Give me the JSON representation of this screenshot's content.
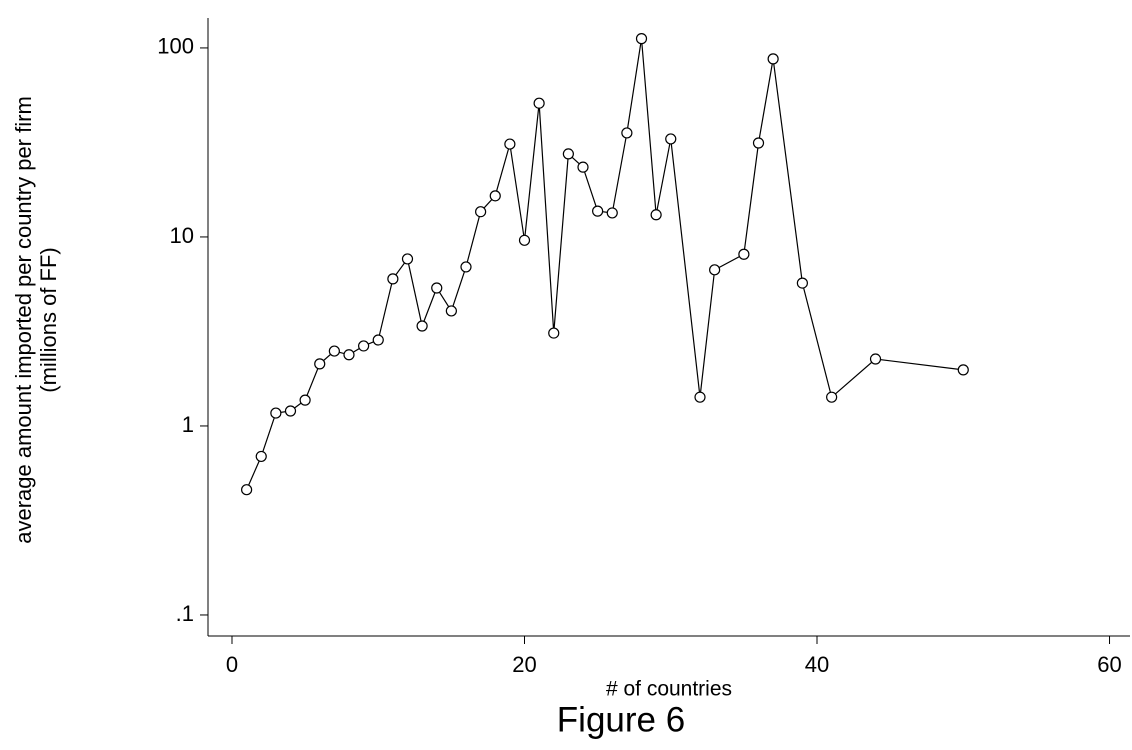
{
  "chart_data": {
    "type": "line",
    "ylabel": [
      "average amount imported per country per firm",
      "(millions of FF)"
    ],
    "xlabel": "# of countries",
    "caption": "Figure 6",
    "x": [
      1,
      2,
      3,
      4,
      5,
      6,
      7,
      8,
      9,
      10,
      11,
      12,
      13,
      14,
      15,
      16,
      17,
      18,
      19,
      20,
      21,
      22,
      23,
      24,
      25,
      26,
      27,
      28,
      29,
      30,
      32,
      33,
      35,
      36,
      37,
      39,
      41,
      44,
      50
    ],
    "series": [
      {
        "color": "#000000",
        "values": [
          0.46,
          0.69,
          1.17,
          1.2,
          1.37,
          2.13,
          2.49,
          2.38,
          2.65,
          2.85,
          6.0,
          7.65,
          3.38,
          5.37,
          4.06,
          6.94,
          13.6,
          16.5,
          31,
          9.6,
          51,
          3.1,
          27.5,
          23.4,
          13.7,
          13.4,
          35.5,
          112,
          13.1,
          33,
          1.42,
          6.7,
          8.1,
          31.4,
          87.5,
          5.7,
          1.42,
          2.26,
          1.98
        ]
      }
    ],
    "xlim": [
      -1.64,
      61.4
    ],
    "xticks": [
      0,
      20,
      40,
      60
    ],
    "ylim": [
      0.0774,
      144
    ],
    "yticks": [
      100,
      10,
      1,
      {
        "value": 0.1,
        "label": ".1"
      }
    ],
    "log_y": true,
    "markers": "hollow-circle"
  }
}
